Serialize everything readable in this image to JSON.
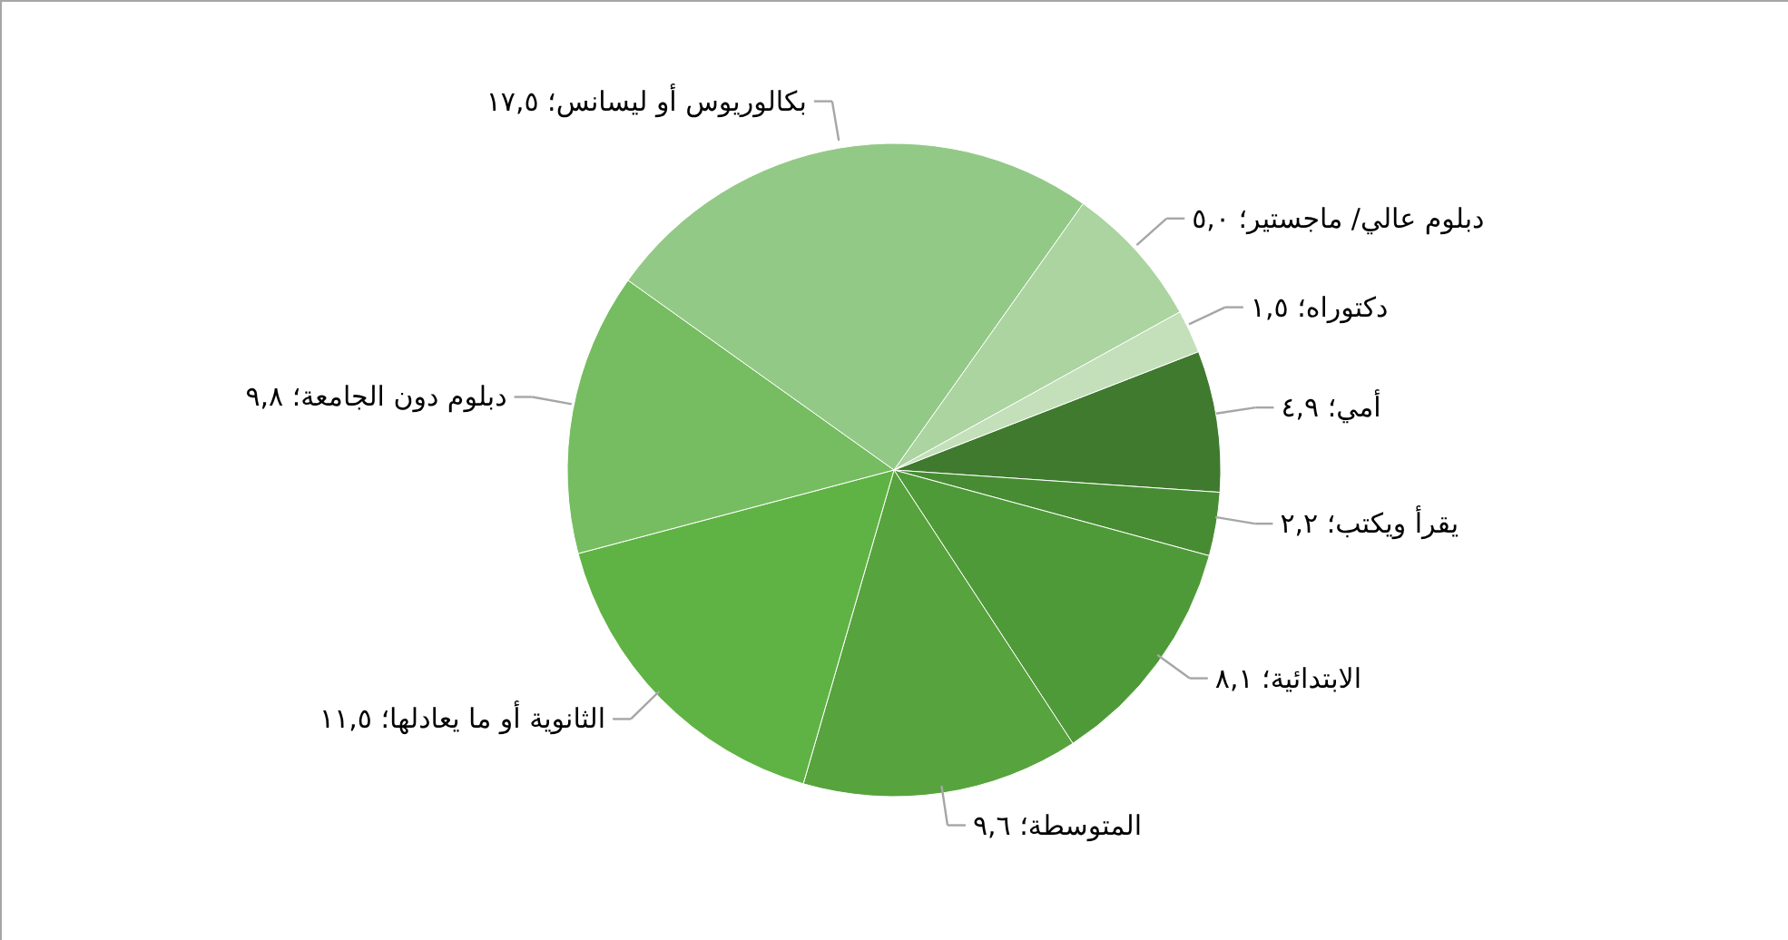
{
  "chart_data": {
    "type": "pie",
    "categories": [
      "أمي؛",
      "يقرأ ويكتب؛",
      "الابتدائية؛",
      "المتوسطة؛",
      "الثانوية أو ما يعادلها؛",
      "دبلوم دون الجامعة؛",
      "بكالوريوس أو ليسانس؛",
      "دبلوم عالي/ ماجستير؛",
      "دكتوراه؛"
    ],
    "values": [
      4.9,
      2.2,
      8.1,
      9.6,
      11.5,
      9.8,
      17.5,
      5.0,
      1.5
    ],
    "value_labels": [
      "٤,٩",
      "٢,٢",
      "٨,١",
      "٩,٦",
      "١١,٥",
      "٩,٨",
      "١٧,٥",
      "٥,٠",
      "١,٥"
    ],
    "colors": [
      "#3f7a2e",
      "#478c33",
      "#4f9a38",
      "#57a33d",
      "#5fb344",
      "#75bd60",
      "#93c986",
      "#abd4a0",
      "#c3e0ba"
    ]
  }
}
